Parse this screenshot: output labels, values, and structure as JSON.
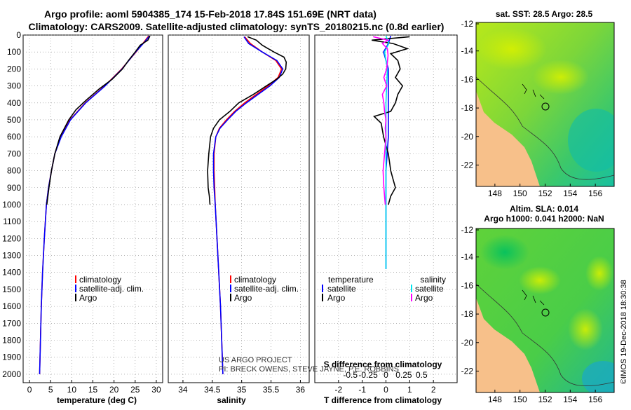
{
  "header": {
    "line1": "Argo profile: aoml 5904385_174 15-Feb-2018 17.84S 151.69E (NRT data)",
    "line2": "Climatology: CARS2009. Satellite-adjusted climatology: synTS_20180215.nc (0.8d earlier)"
  },
  "depth_ticks": [
    "0",
    "100",
    "200",
    "300",
    "400",
    "500",
    "600",
    "700",
    "800",
    "900",
    "1000",
    "1100",
    "1200",
    "1300",
    "1400",
    "1500",
    "1600",
    "1700",
    "1800",
    "1900",
    "2000"
  ],
  "colors": {
    "climatology": "#ff0000",
    "satellite": "#0000ff",
    "argo": "#000000",
    "sat_salinity": "#00e5ee",
    "argo_salinity": "#ff00ff",
    "land": "#f7c08a"
  },
  "chart_data": [
    {
      "type": "line",
      "name": "temperature-profile",
      "xlabel": "temperature (deg C)",
      "xlim": [
        -1.5,
        31.5
      ],
      "ylim": [
        2050,
        0
      ],
      "xticks": [
        "0",
        "5",
        "10",
        "15",
        "20",
        "25",
        "30"
      ],
      "xtick_values": [
        0,
        5,
        10,
        15,
        20,
        25,
        30
      ],
      "legend": {
        "placement": "bottom-right",
        "items": [
          "climatology",
          "satellite-adj. clim.",
          "Argo"
        ]
      },
      "series": [
        {
          "name": "climatology",
          "depth": [
            5,
            50,
            100,
            200,
            300,
            400,
            500,
            600,
            700,
            800,
            900,
            1000,
            1200,
            1400,
            1600,
            1800,
            2000
          ],
          "values": [
            28.2,
            26.8,
            25.2,
            21.8,
            17.8,
            13.2,
            9.6,
            7.4,
            6.0,
            5.2,
            4.5,
            4.0,
            3.5,
            3.1,
            2.8,
            2.6,
            2.4
          ]
        },
        {
          "name": "satellite-adj. clim.",
          "depth": [
            5,
            50,
            100,
            200,
            300,
            400,
            500,
            600,
            700,
            800,
            900,
            1000,
            1200,
            1400,
            1600,
            1800,
            2000
          ],
          "values": [
            28.4,
            26.9,
            25.1,
            21.9,
            17.9,
            13.3,
            9.7,
            7.5,
            6.0,
            5.2,
            4.5,
            4.0,
            3.5,
            3.1,
            2.8,
            2.6,
            2.4
          ]
        },
        {
          "name": "Argo",
          "depth": [
            5,
            30,
            60,
            100,
            150,
            200,
            260,
            320,
            380,
            440,
            500,
            600,
            700,
            800,
            900,
            1000
          ],
          "values": [
            28.5,
            28.0,
            26.2,
            25.0,
            23.4,
            22.0,
            19.6,
            16.4,
            13.6,
            11.0,
            9.3,
            7.2,
            6.0,
            5.2,
            4.6,
            4.1
          ]
        }
      ]
    },
    {
      "type": "line",
      "name": "salinity-profile",
      "xlabel": "salinity",
      "xlim": [
        33.75,
        36.15
      ],
      "ylim": [
        2050,
        0
      ],
      "xticks": [
        "34",
        "34.5",
        "35",
        "35.5",
        "36"
      ],
      "xtick_values": [
        34,
        34.5,
        35,
        35.5,
        36
      ],
      "legend": {
        "placement": "bottom-right",
        "items": [
          "climatology",
          "satellite-adj. clim.",
          "Argo"
        ]
      },
      "series": [
        {
          "name": "climatology",
          "depth": [
            10,
            50,
            100,
            150,
            200,
            250,
            300,
            350,
            400,
            450,
            500,
            550,
            600,
            700,
            800,
            900,
            1000,
            1200,
            1400,
            1600,
            1800,
            2000
          ],
          "values": [
            35.05,
            35.15,
            35.35,
            35.58,
            35.68,
            35.62,
            35.45,
            35.25,
            35.05,
            34.88,
            34.74,
            34.62,
            34.56,
            34.53,
            34.53,
            34.54,
            34.55,
            34.58,
            34.61,
            34.64,
            34.66,
            34.68
          ]
        },
        {
          "name": "satellite-adj. clim.",
          "depth": [
            10,
            50,
            100,
            150,
            200,
            250,
            300,
            350,
            400,
            450,
            500,
            550,
            600,
            700,
            800,
            900,
            1000,
            1200,
            1400,
            1600,
            1800,
            2000
          ],
          "values": [
            35.04,
            35.12,
            35.35,
            35.6,
            35.7,
            35.64,
            35.48,
            35.28,
            35.08,
            34.9,
            34.76,
            34.63,
            34.56,
            34.52,
            34.52,
            34.53,
            34.55,
            34.58,
            34.61,
            34.64,
            34.66,
            34.68
          ]
        },
        {
          "name": "Argo",
          "depth": [
            10,
            30,
            60,
            100,
            130,
            160,
            200,
            230,
            260,
            300,
            350,
            400,
            450,
            500,
            550,
            600,
            700,
            800,
            900,
            950,
            1000
          ],
          "values": [
            35.1,
            35.25,
            35.35,
            35.55,
            35.72,
            35.76,
            35.75,
            35.7,
            35.6,
            35.42,
            35.2,
            34.95,
            34.8,
            34.62,
            34.52,
            34.47,
            34.44,
            34.42,
            34.43,
            34.45,
            34.46
          ]
        }
      ]
    },
    {
      "type": "line",
      "name": "difference-profile",
      "xlabel": "T difference from climatology",
      "xlabel_top": "S difference from climatology",
      "xlim": [
        -3,
        3
      ],
      "ylim": [
        2050,
        0
      ],
      "xticks": [
        "-2",
        "-1",
        "0",
        "1",
        "2"
      ],
      "xtick_values": [
        -2,
        -1,
        0,
        1,
        2
      ],
      "s_ticks": [
        "-0.5",
        "-0.25",
        "0",
        "0.25",
        "0.5"
      ],
      "s_tick_values": [
        -0.5,
        -0.25,
        0,
        0.25,
        0.5
      ],
      "legend": {
        "left_title": "temperature",
        "right_title": "salinity",
        "items": [
          "satellite",
          "Argo"
        ]
      },
      "series": [
        {
          "name": "T satellite",
          "depth": [
            5,
            50,
            100,
            200,
            300,
            400,
            500,
            600,
            800,
            1000,
            1200,
            1380
          ],
          "values": [
            0.2,
            0.1,
            -0.1,
            0.1,
            0.1,
            0.1,
            0.1,
            0.1,
            0.0,
            0.0,
            0.0,
            0.0
          ]
        },
        {
          "name": "T Argo",
          "depth": [
            10,
            30,
            50,
            80,
            110,
            150,
            200,
            250,
            300,
            350,
            400,
            450,
            480,
            520,
            600,
            700,
            800,
            850,
            900,
            950,
            1000
          ],
          "values": [
            1.0,
            -0.6,
            0.3,
            0.9,
            0.2,
            0.5,
            0.6,
            0.4,
            0.7,
            0.5,
            0.4,
            0.2,
            -0.5,
            -0.2,
            -0.1,
            0.1,
            0.2,
            0.3,
            0.4,
            0.2,
            0.1
          ]
        },
        {
          "name": "S satellite",
          "depth": [
            5,
            50,
            100,
            200,
            300,
            400,
            500,
            600,
            800,
            1000,
            1200,
            1380
          ],
          "values": [
            0.0,
            0.04,
            -0.02,
            0.02,
            0.01,
            0.0,
            0.0,
            0.0,
            0.0,
            0.0,
            0.0,
            0.0
          ]
        },
        {
          "name": "S Argo",
          "depth": [
            10,
            30,
            50,
            80,
            120,
            160,
            200,
            250,
            300,
            350,
            400,
            450,
            500,
            550,
            600,
            700,
            800,
            900,
            1000
          ],
          "values": [
            -0.18,
            0.03,
            -0.05,
            0.02,
            0.03,
            0.02,
            0.01,
            -0.03,
            0.01,
            -0.05,
            -0.03,
            -0.02,
            0.0,
            -0.01,
            0.0,
            -0.02,
            -0.04,
            -0.03,
            -0.01
          ]
        }
      ]
    }
  ],
  "credit": {
    "line1": "US ARGO PROJECT",
    "line2": "PI: BRECK OWENS, STEVE JAYNE, P.E. ROBBINS"
  },
  "maps": {
    "top": {
      "title": "sat. SST: 28.5 Argo: 28.5"
    },
    "bottom": {
      "title1": "Altim. SLA: 0.014",
      "title2": "Argo h1000: 0.041 h2000: NaN"
    },
    "yticks": [
      "-12",
      "-14",
      "-16",
      "-18",
      "-20",
      "-22"
    ],
    "xticks": [
      "148",
      "150",
      "152",
      "154",
      "156"
    ]
  },
  "watermark": "©IMOS 19-Dec-2018 18:30:38"
}
